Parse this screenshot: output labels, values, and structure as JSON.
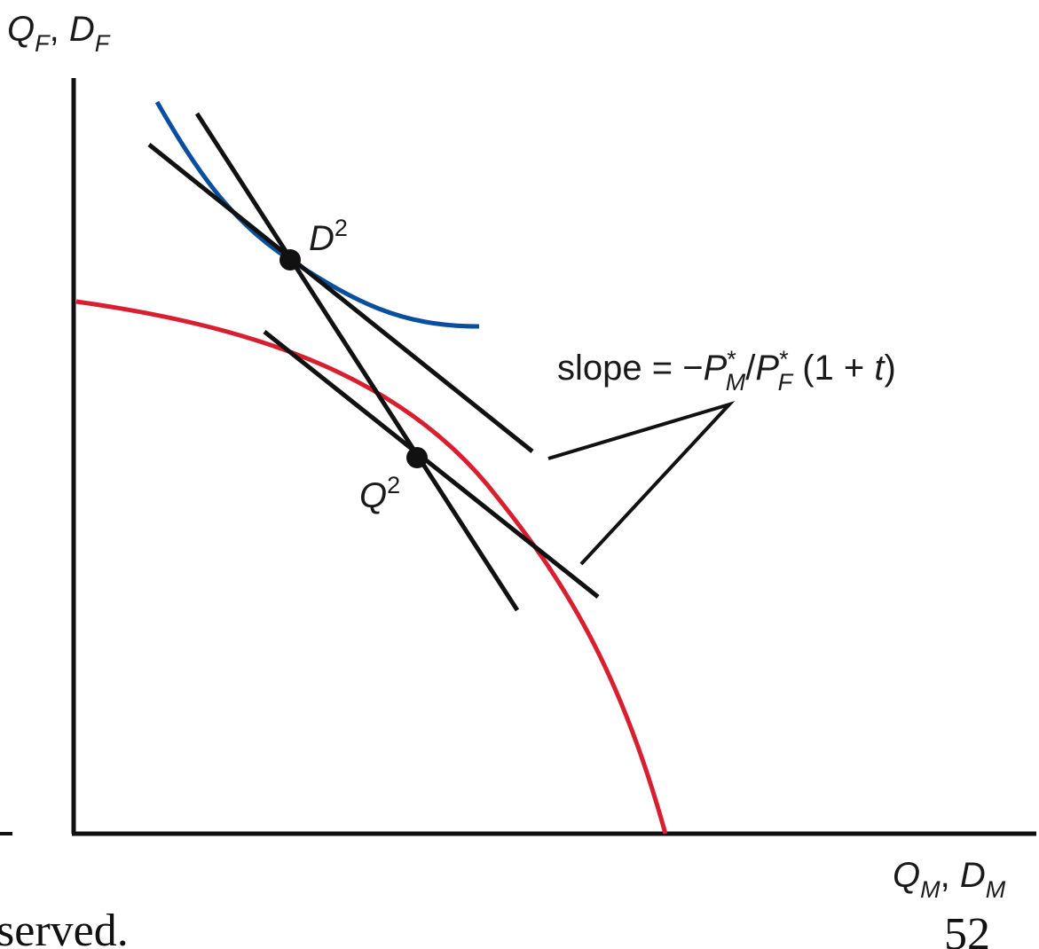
{
  "axes": {
    "y_label": {
      "main": "Q",
      "sub": "F",
      "sep": ", ",
      "main2": "D",
      "sub2": "F"
    },
    "x_label": {
      "main": "Q",
      "sub": "M",
      "sep": ", ",
      "main2": "D",
      "sub2": "M"
    }
  },
  "points": {
    "consumption": {
      "main": "D",
      "sup": "2"
    },
    "production": {
      "main": "Q",
      "sup": "2"
    }
  },
  "slope_note": {
    "pre": "slope = −",
    "p1": "P",
    "p1_sup": "*",
    "p1_sub": "M",
    "div": "/",
    "p2": "P",
    "p2_sup": "*",
    "p2_sub": "F",
    "paren_open": " (1 + ",
    "t": "t",
    "paren_close": ")"
  },
  "slide_fragments": {
    "left": "served.",
    "right": "52"
  },
  "colors": {
    "ppf": "#d81f30",
    "indifference": "#0a4f9e",
    "lines": "#111111",
    "axes": "#111111"
  }
}
